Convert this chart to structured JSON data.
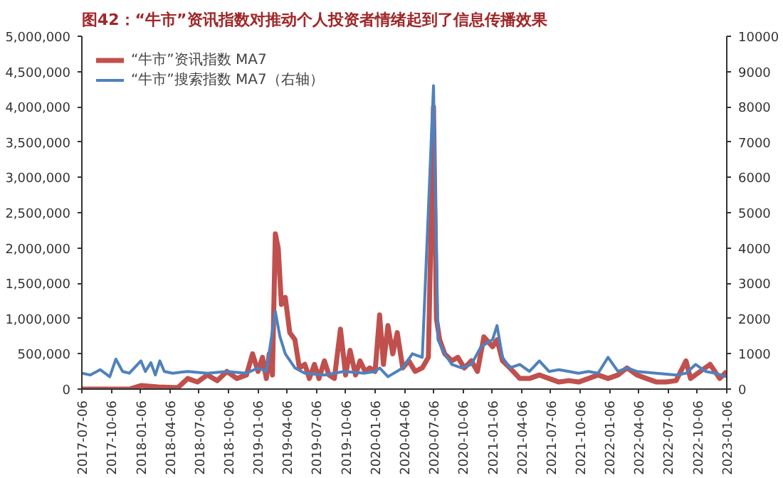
{
  "chart_data": {
    "type": "line",
    "title": "图42：“牛市”资讯指数对推动个人投资者情绪起到了信息传播效果",
    "legend": "top left",
    "grid": false,
    "marker": "none",
    "line_style": "solid",
    "xlim": [
      "2017-07-06",
      "2023-01-06"
    ],
    "xticks": [
      "2017-07-06",
      "2017-10-06",
      "2018-01-06",
      "2018-04-06",
      "2018-07-06",
      "2018-10-06",
      "2019-01-06",
      "2019-04-06",
      "2019-07-06",
      "2019-10-06",
      "2020-01-06",
      "2020-04-06",
      "2020-07-06",
      "2020-10-06",
      "2021-01-06",
      "2021-04-06",
      "2021-07-06",
      "2021-10-06",
      "2022-01-06",
      "2022-04-06",
      "2022-07-06",
      "2022-10-06",
      "2023-01-06"
    ],
    "ylim": [
      0,
      5000000
    ],
    "yticks": [
      {
        "value": 0,
        "label": "0"
      },
      {
        "value": 500000,
        "label": "500,000"
      },
      {
        "value": 1000000,
        "label": "1,000,000"
      },
      {
        "value": 1500000,
        "label": "1,500,000"
      },
      {
        "value": 2000000,
        "label": "2,000,000"
      },
      {
        "value": 2500000,
        "label": "2,500,000"
      },
      {
        "value": 3000000,
        "label": "3,000,000"
      },
      {
        "value": 3500000,
        "label": "3,500,000"
      },
      {
        "value": 4000000,
        "label": "4,000,000"
      },
      {
        "value": 4500000,
        "label": "4,500,000"
      },
      {
        "value": 5000000,
        "label": "5,000,000"
      }
    ],
    "y2lim": [
      0,
      10000
    ],
    "y2ticks": [
      0,
      1000,
      2000,
      3000,
      4000,
      5000,
      6000,
      7000,
      8000,
      9000,
      10000
    ],
    "series": [
      {
        "name": "“牛市”资讯指数 MA7",
        "color": "#c0504d",
        "x": [
          "2017-07-06",
          "2017-12-01",
          "2018-01-06",
          "2018-03-01",
          "2018-05-01",
          "2018-06-01",
          "2018-07-01",
          "2018-08-01",
          "2018-09-01",
          "2018-10-01",
          "2018-11-01",
          "2018-12-01",
          "2018-12-20",
          "2019-01-06",
          "2019-01-20",
          "2019-02-01",
          "2019-02-10",
          "2019-02-20",
          "2019-03-01",
          "2019-03-10",
          "2019-03-20",
          "2019-04-01",
          "2019-04-15",
          "2019-05-01",
          "2019-05-15",
          "2019-06-01",
          "2019-06-15",
          "2019-07-01",
          "2019-07-15",
          "2019-08-01",
          "2019-08-15",
          "2019-09-01",
          "2019-09-20",
          "2019-10-06",
          "2019-10-20",
          "2019-11-06",
          "2019-11-20",
          "2019-12-06",
          "2019-12-20",
          "2020-01-06",
          "2020-01-20",
          "2020-02-01",
          "2020-02-15",
          "2020-03-01",
          "2020-03-15",
          "2020-04-01",
          "2020-04-20",
          "2020-05-10",
          "2020-06-01",
          "2020-06-20",
          "2020-07-06",
          "2020-07-15",
          "2020-07-25",
          "2020-08-10",
          "2020-09-01",
          "2020-09-20",
          "2020-10-10",
          "2020-11-01",
          "2020-11-20",
          "2020-12-10",
          "2021-01-06",
          "2021-01-20",
          "2021-02-06",
          "2021-03-01",
          "2021-04-01",
          "2021-05-01",
          "2021-06-01",
          "2021-07-01",
          "2021-08-01",
          "2021-09-01",
          "2021-10-01",
          "2021-11-01",
          "2021-12-01",
          "2022-01-01",
          "2022-02-01",
          "2022-03-01",
          "2022-04-01",
          "2022-05-01",
          "2022-06-01",
          "2022-07-01",
          "2022-08-01",
          "2022-09-01",
          "2022-09-15",
          "2022-10-15",
          "2022-11-15",
          "2022-12-15",
          "2023-01-06"
        ],
        "values": [
          0,
          0,
          50000,
          30000,
          20000,
          150000,
          100000,
          200000,
          120000,
          250000,
          150000,
          200000,
          500000,
          250000,
          450000,
          150000,
          500000,
          200000,
          2200000,
          2000000,
          1200000,
          1300000,
          800000,
          700000,
          300000,
          350000,
          150000,
          350000,
          150000,
          400000,
          200000,
          150000,
          850000,
          200000,
          550000,
          200000,
          400000,
          250000,
          300000,
          250000,
          1050000,
          350000,
          900000,
          500000,
          800000,
          300000,
          400000,
          250000,
          300000,
          450000,
          4000000,
          1000000,
          700000,
          500000,
          400000,
          450000,
          300000,
          400000,
          250000,
          740000,
          600000,
          700000,
          400000,
          300000,
          150000,
          150000,
          200000,
          150000,
          100000,
          120000,
          100000,
          150000,
          200000,
          150000,
          200000,
          300000,
          200000,
          150000,
          100000,
          100000,
          120000,
          400000,
          150000,
          250000,
          350000,
          150000,
          250000
        ]
      },
      {
        "name": "“牛市”搜索指数 MA7（右轴）",
        "color": "#4f81bd",
        "axis": "y2",
        "x": [
          "2017-07-06",
          "2017-08-01",
          "2017-09-01",
          "2017-10-01",
          "2017-10-20",
          "2017-11-10",
          "2017-12-01",
          "2018-01-06",
          "2018-01-20",
          "2018-02-06",
          "2018-02-20",
          "2018-03-06",
          "2018-03-20",
          "2018-04-15",
          "2018-06-01",
          "2018-08-01",
          "2018-10-01",
          "2018-12-01",
          "2019-01-06",
          "2019-02-01",
          "2019-03-01",
          "2019-03-15",
          "2019-04-01",
          "2019-05-01",
          "2019-06-01",
          "2019-08-01",
          "2019-10-01",
          "2019-12-01",
          "2020-01-06",
          "2020-01-20",
          "2020-02-15",
          "2020-04-01",
          "2020-05-01",
          "2020-06-01",
          "2020-07-06",
          "2020-07-20",
          "2020-08-10",
          "2020-09-01",
          "2020-10-01",
          "2020-11-01",
          "2020-12-01",
          "2021-01-06",
          "2021-01-20",
          "2021-02-06",
          "2021-03-01",
          "2021-04-01",
          "2021-05-01",
          "2021-06-01",
          "2021-07-01",
          "2021-08-01",
          "2021-09-01",
          "2021-10-01",
          "2021-11-01",
          "2021-12-01",
          "2022-01-01",
          "2022-02-01",
          "2022-03-01",
          "2022-04-01",
          "2022-06-01",
          "2022-08-01",
          "2022-09-01",
          "2022-10-01",
          "2022-11-01",
          "2022-12-01",
          "2023-01-06"
        ],
        "values": [
          450,
          400,
          550,
          350,
          850,
          500,
          450,
          800,
          500,
          750,
          400,
          800,
          500,
          450,
          500,
          450,
          500,
          450,
          600,
          500,
          2200,
          1500,
          1000,
          600,
          450,
          400,
          500,
          450,
          500,
          600,
          350,
          600,
          1000,
          900,
          8600,
          1400,
          1000,
          700,
          600,
          700,
          1200,
          1400,
          1800,
          900,
          600,
          700,
          500,
          800,
          500,
          550,
          500,
          450,
          500,
          450,
          900,
          500,
          600,
          500,
          450,
          400,
          450,
          700,
          500,
          450,
          350
        ]
      }
    ]
  }
}
